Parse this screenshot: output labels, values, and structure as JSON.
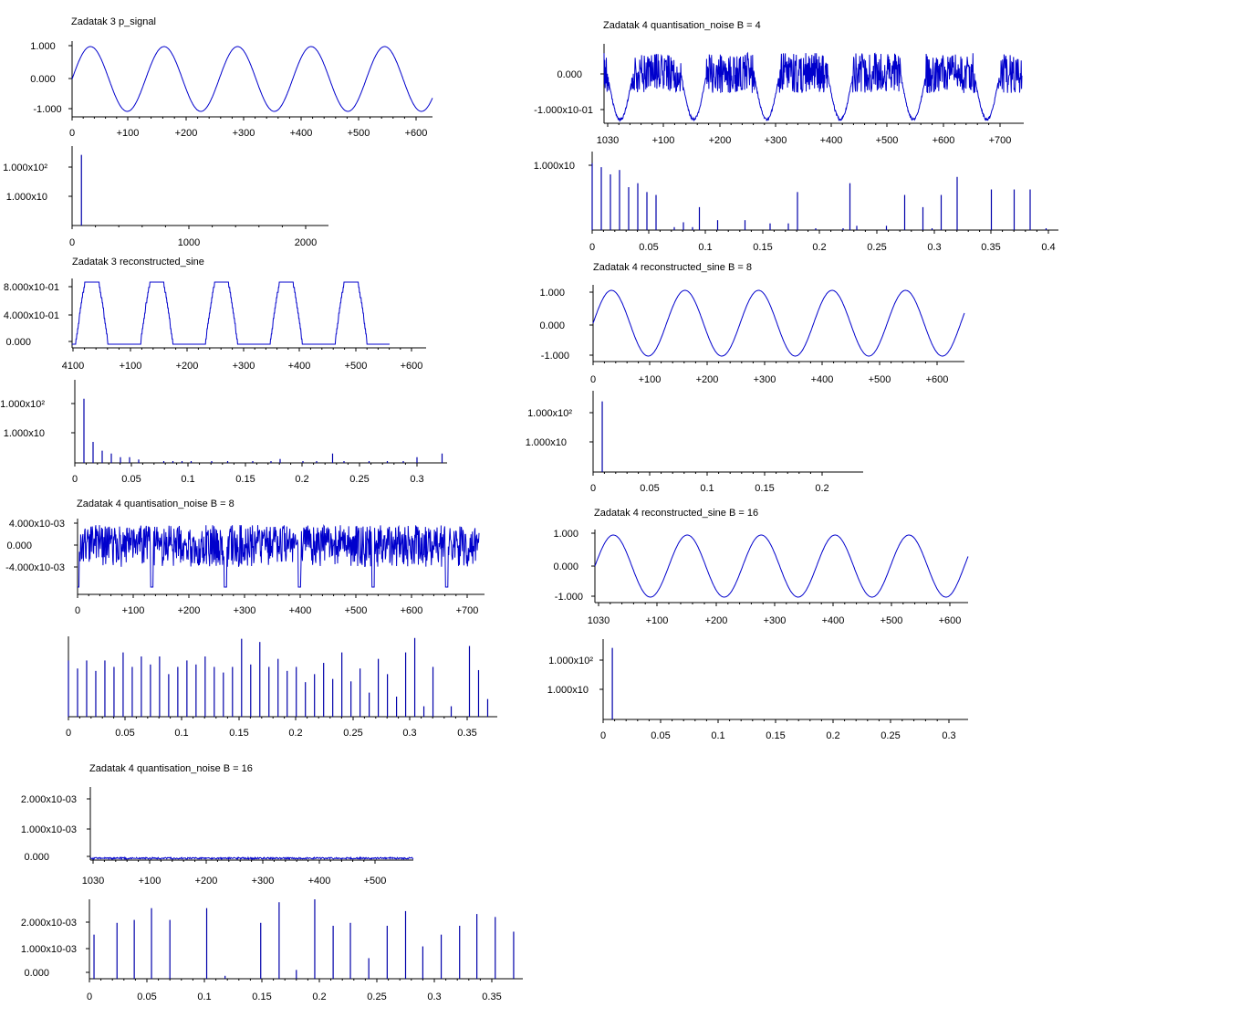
{
  "colors": {
    "trace": "#0000cc",
    "spike": "#0000aa",
    "axis": "#000000",
    "background": "#ffffff"
  },
  "chart_data": [
    {
      "id": "z3-signal",
      "type": "line",
      "title": "Zadatak 3 p_signal",
      "x_ticks": [
        "0",
        "+100",
        "+200",
        "+300",
        "+400",
        "+500",
        "+600"
      ],
      "y_ticks": [
        "1.000",
        "0.000",
        "-1.000"
      ],
      "ylim": [
        -1,
        1
      ],
      "xlim": [
        0,
        630
      ],
      "period": 127,
      "series": [
        {
          "kind": "sine",
          "amplitude": 1.0,
          "cycles": 4.9
        }
      ]
    },
    {
      "id": "z3-spectrum",
      "type": "bar",
      "title": "",
      "x_ticks": [
        "0",
        "1000",
        "2000"
      ],
      "y_ticks": [
        "1.000x10²",
        "1.000x10"
      ],
      "scale": "log",
      "spikes": [
        {
          "x": 80,
          "y": 500
        }
      ]
    },
    {
      "id": "z3-reconstructed",
      "type": "line",
      "title": "Zadatak 3 reconstructed_sine",
      "x_ticks": [
        "4100",
        "+100",
        "+200",
        "+300",
        "+400",
        "+500",
        "+600"
      ],
      "y_ticks": [
        "8.000x10-01",
        "4.000x10-01",
        "0.000"
      ],
      "ylim": [
        0,
        0.9
      ],
      "series": [
        {
          "kind": "clipped_steps",
          "peak": 0.9,
          "cycles": 5
        }
      ]
    },
    {
      "id": "z3-reconstructed-spectrum",
      "type": "bar",
      "title": "",
      "x_ticks": [
        "0",
        "0.05",
        "0.1",
        "0.15",
        "0.2",
        "0.25",
        "0.3"
      ],
      "y_ticks": [
        "1.000x10²",
        "1.000x10"
      ],
      "scale": "log",
      "spikes": [
        {
          "x": 0.008,
          "y": 300
        },
        {
          "x": 0.016,
          "y": 10
        },
        {
          "x": 0.024,
          "y": 5
        },
        {
          "x": 0.032,
          "y": 4
        },
        {
          "x": 0.04,
          "y": 3
        },
        {
          "x": 0.048,
          "y": 3
        },
        {
          "x": 0.056,
          "y": 2.5
        },
        {
          "x": 0.078,
          "y": 1.5
        },
        {
          "x": 0.086,
          "y": 1.6
        },
        {
          "x": 0.094,
          "y": 1.4
        },
        {
          "x": 0.102,
          "y": 2
        },
        {
          "x": 0.12,
          "y": 1.8
        },
        {
          "x": 0.134,
          "y": 2
        },
        {
          "x": 0.156,
          "y": 1.6
        },
        {
          "x": 0.172,
          "y": 1.5
        },
        {
          "x": 0.18,
          "y": 2.6
        },
        {
          "x": 0.2,
          "y": 1.3
        },
        {
          "x": 0.212,
          "y": 1.4
        },
        {
          "x": 0.226,
          "y": 4
        },
        {
          "x": 0.236,
          "y": 1.7
        },
        {
          "x": 0.258,
          "y": 1.6
        },
        {
          "x": 0.274,
          "y": 2
        },
        {
          "x": 0.288,
          "y": 1.7
        },
        {
          "x": 0.3,
          "y": 3
        },
        {
          "x": 0.322,
          "y": 4
        }
      ]
    },
    {
      "id": "z4-noise-b8",
      "type": "line",
      "title": "Zadatak 4 quantisation_noise B = 8",
      "x_ticks": [
        "0",
        "+100",
        "+200",
        "+300",
        "+400",
        "+500",
        "+600",
        "+700"
      ],
      "y_ticks": [
        "4.000x10-03",
        "0.000",
        "-4.000x10-03"
      ],
      "ylim": [
        -0.0065,
        0.0045
      ],
      "series": [
        {
          "kind": "noise",
          "amplitude": 0.004,
          "dips_at": [
            0,
            133,
            265,
            398,
            530,
            662
          ]
        }
      ]
    },
    {
      "id": "z4-noise-b8-spectrum",
      "type": "bar",
      "title": "",
      "x_ticks": [
        "0",
        "0.05",
        "0.1",
        "0.15",
        "0.2",
        "0.25",
        "0.3",
        "0.35"
      ],
      "y_ticks": [],
      "scale": "linear",
      "spikes": [
        {
          "x": 0.0,
          "y": 0.7
        },
        {
          "x": 0.008,
          "y": 0.6
        },
        {
          "x": 0.016,
          "y": 0.7
        },
        {
          "x": 0.024,
          "y": 0.57
        },
        {
          "x": 0.032,
          "y": 0.7
        },
        {
          "x": 0.04,
          "y": 0.62
        },
        {
          "x": 0.048,
          "y": 0.8
        },
        {
          "x": 0.056,
          "y": 0.62
        },
        {
          "x": 0.064,
          "y": 0.75
        },
        {
          "x": 0.072,
          "y": 0.65
        },
        {
          "x": 0.08,
          "y": 0.75
        },
        {
          "x": 0.088,
          "y": 0.53
        },
        {
          "x": 0.096,
          "y": 0.62
        },
        {
          "x": 0.104,
          "y": 0.7
        },
        {
          "x": 0.112,
          "y": 0.65
        },
        {
          "x": 0.12,
          "y": 0.75
        },
        {
          "x": 0.128,
          "y": 0.62
        },
        {
          "x": 0.136,
          "y": 0.55
        },
        {
          "x": 0.144,
          "y": 0.62
        },
        {
          "x": 0.152,
          "y": 0.97
        },
        {
          "x": 0.16,
          "y": 0.65
        },
        {
          "x": 0.168,
          "y": 0.93
        },
        {
          "x": 0.176,
          "y": 0.62
        },
        {
          "x": 0.184,
          "y": 0.72
        },
        {
          "x": 0.192,
          "y": 0.57
        },
        {
          "x": 0.2,
          "y": 0.62
        },
        {
          "x": 0.208,
          "y": 0.43
        },
        {
          "x": 0.216,
          "y": 0.53
        },
        {
          "x": 0.224,
          "y": 0.67
        },
        {
          "x": 0.232,
          "y": 0.47
        },
        {
          "x": 0.24,
          "y": 0.8
        },
        {
          "x": 0.248,
          "y": 0.44
        },
        {
          "x": 0.256,
          "y": 0.6
        },
        {
          "x": 0.264,
          "y": 0.3
        },
        {
          "x": 0.272,
          "y": 0.72
        },
        {
          "x": 0.28,
          "y": 0.53
        },
        {
          "x": 0.288,
          "y": 0.25
        },
        {
          "x": 0.296,
          "y": 0.8
        },
        {
          "x": 0.304,
          "y": 0.98
        },
        {
          "x": 0.312,
          "y": 0.13
        },
        {
          "x": 0.32,
          "y": 0.62
        },
        {
          "x": 0.336,
          "y": 0.13
        },
        {
          "x": 0.352,
          "y": 0.88
        },
        {
          "x": 0.36,
          "y": 0.58
        },
        {
          "x": 0.368,
          "y": 0.22
        }
      ]
    },
    {
      "id": "z4-noise-b16",
      "type": "line",
      "title": "Zadatak 4 quantisation_noise B = 16",
      "x_ticks": [
        "1030",
        "+100",
        "+200",
        "+300",
        "+400",
        "+500"
      ],
      "y_ticks": [
        "2.000x10-03",
        "1.000x10-03",
        "0.000"
      ],
      "ylim": [
        0,
        0.0025
      ],
      "series": [
        {
          "kind": "flat_noise",
          "amplitude": 2e-05
        }
      ]
    },
    {
      "id": "z4-noise-b16-spectrum",
      "type": "bar",
      "title": "",
      "x_ticks": [
        "0",
        "0.05",
        "0.1",
        "0.15",
        "0.2",
        "0.25",
        "0.3",
        "0.35"
      ],
      "y_ticks": [
        "2.000x10-03",
        "1.000x10-03",
        "0.000"
      ],
      "scale": "linear",
      "ylim": [
        0,
        0.0027
      ],
      "spikes": [
        {
          "x": 0.004,
          "y": 0.0015
        },
        {
          "x": 0.024,
          "y": 0.0019
        },
        {
          "x": 0.039,
          "y": 0.002
        },
        {
          "x": 0.054,
          "y": 0.0024
        },
        {
          "x": 0.07,
          "y": 0.002
        },
        {
          "x": 0.102,
          "y": 0.0024
        },
        {
          "x": 0.118,
          "y": 0.0001
        },
        {
          "x": 0.149,
          "y": 0.0019
        },
        {
          "x": 0.165,
          "y": 0.0026
        },
        {
          "x": 0.18,
          "y": 0.0003
        },
        {
          "x": 0.196,
          "y": 0.0027
        },
        {
          "x": 0.212,
          "y": 0.0018
        },
        {
          "x": 0.227,
          "y": 0.0019
        },
        {
          "x": 0.243,
          "y": 0.0007
        },
        {
          "x": 0.259,
          "y": 0.0018
        },
        {
          "x": 0.275,
          "y": 0.0023
        },
        {
          "x": 0.29,
          "y": 0.0011
        },
        {
          "x": 0.306,
          "y": 0.0015
        },
        {
          "x": 0.322,
          "y": 0.0018
        },
        {
          "x": 0.337,
          "y": 0.0022
        },
        {
          "x": 0.353,
          "y": 0.0021
        },
        {
          "x": 0.369,
          "y": 0.0016
        }
      ]
    },
    {
      "id": "z4-noise-b4",
      "type": "line",
      "title": "Zadatak 4 quantisation_noise    B = 4",
      "x_ticks": [
        "1030",
        "+100",
        "+200",
        "+300",
        "+400",
        "+500",
        "+600",
        "+700"
      ],
      "y_ticks": [
        "0.000",
        "-1.000x10-01"
      ],
      "ylim": [
        -0.16,
        0.07
      ],
      "series": [
        {
          "kind": "noise_dips",
          "amplitude": 0.05,
          "dip": -0.15,
          "dips_at": [
            28,
            156,
            283,
            411,
            538,
            666
          ]
        }
      ]
    },
    {
      "id": "z4-noise-b4-spectrum",
      "type": "bar",
      "title": "",
      "x_ticks": [
        "0",
        "0.05",
        "0.1",
        "0.15",
        "0.2",
        "0.25",
        "0.3",
        "0.35",
        "0.4"
      ],
      "y_ticks": [
        "1.000x10"
      ],
      "scale": "log",
      "spikes": [
        {
          "x": 0.0,
          "y": 30
        },
        {
          "x": 0.008,
          "y": 25
        },
        {
          "x": 0.016,
          "y": 18
        },
        {
          "x": 0.024,
          "y": 22
        },
        {
          "x": 0.032,
          "y": 10
        },
        {
          "x": 0.04,
          "y": 12
        },
        {
          "x": 0.048,
          "y": 8
        },
        {
          "x": 0.056,
          "y": 7
        },
        {
          "x": 0.072,
          "y": 1.6
        },
        {
          "x": 0.08,
          "y": 2
        },
        {
          "x": 0.088,
          "y": 1.6
        },
        {
          "x": 0.094,
          "y": 4
        },
        {
          "x": 0.11,
          "y": 2.2
        },
        {
          "x": 0.134,
          "y": 2.2
        },
        {
          "x": 0.156,
          "y": 1.9
        },
        {
          "x": 0.172,
          "y": 1.9
        },
        {
          "x": 0.18,
          "y": 8
        },
        {
          "x": 0.196,
          "y": 1.3
        },
        {
          "x": 0.22,
          "y": 1.5
        },
        {
          "x": 0.226,
          "y": 12
        },
        {
          "x": 0.232,
          "y": 1.7
        },
        {
          "x": 0.258,
          "y": 1.7
        },
        {
          "x": 0.274,
          "y": 7
        },
        {
          "x": 0.29,
          "y": 4
        },
        {
          "x": 0.298,
          "y": 1.5
        },
        {
          "x": 0.306,
          "y": 7
        },
        {
          "x": 0.32,
          "y": 16
        },
        {
          "x": 0.35,
          "y": 9
        },
        {
          "x": 0.37,
          "y": 9
        },
        {
          "x": 0.384,
          "y": 9
        },
        {
          "x": 0.398,
          "y": 1.4
        }
      ]
    },
    {
      "id": "z4-reconstructed-b8",
      "type": "line",
      "title": "Zadatak 4 reconstructed_sine B = 8",
      "x_ticks": [
        "0",
        "+100",
        "+200",
        "+300",
        "+400",
        "+500",
        "+600"
      ],
      "y_ticks": [
        "1.000",
        "0.000",
        "-1.000"
      ],
      "ylim": [
        -1,
        1
      ],
      "series": [
        {
          "kind": "sine",
          "amplitude": 1.0,
          "cycles": 5.05
        }
      ]
    },
    {
      "id": "z4-reconstructed-b8-spectrum",
      "type": "bar",
      "title": "",
      "x_ticks": [
        "0",
        "0.05",
        "0.1",
        "0.15",
        "0.2"
      ],
      "y_ticks": [
        "1.000x10²",
        "1.000x10"
      ],
      "scale": "log",
      "spikes": [
        {
          "x": 0.008,
          "y": 500
        }
      ]
    },
    {
      "id": "z4-reconstructed-b16",
      "type": "line",
      "title": "Zadatak 4 reconstructed_sine B = 16",
      "x_ticks": [
        "1030",
        "+100",
        "+200",
        "+300",
        "+400",
        "+500",
        "+600"
      ],
      "y_ticks": [
        "1.000",
        "0.000",
        "-1.000"
      ],
      "ylim": [
        -1,
        1
      ],
      "series": [
        {
          "kind": "sine",
          "amplitude": 1.0,
          "cycles": 5.05
        }
      ]
    },
    {
      "id": "z4-reconstructed-b16-spectrum",
      "type": "bar",
      "title": "",
      "x_ticks": [
        "0",
        "0.05",
        "0.1",
        "0.15",
        "0.2",
        "0.25",
        "0.3"
      ],
      "y_ticks": [
        "1.000x10²",
        "1.000x10"
      ],
      "scale": "log",
      "spikes": [
        {
          "x": 0.008,
          "y": 500
        }
      ]
    }
  ]
}
